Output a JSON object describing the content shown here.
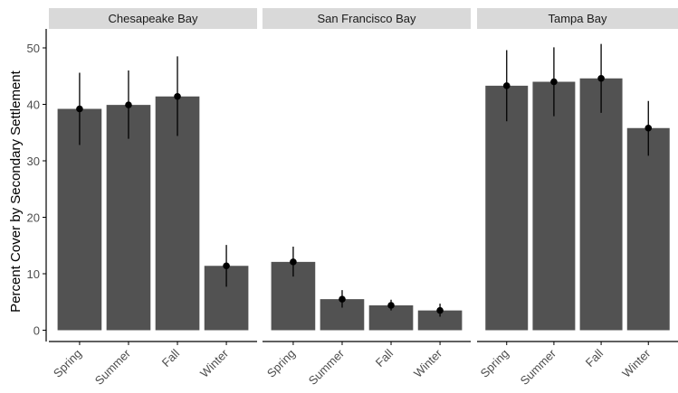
{
  "chart_data": {
    "type": "bar",
    "ylabel": "Percent Cover by Secondary Settlement",
    "xlabel": "",
    "ylim": [
      0,
      53
    ],
    "yticks": [
      0,
      10,
      20,
      30,
      40,
      50
    ],
    "categories": [
      "Spring",
      "Summer",
      "Fall",
      "Winter"
    ],
    "facets": [
      {
        "title": "Chesapeake Bay",
        "values": [
          39.2,
          39.9,
          41.4,
          11.4
        ],
        "errors": [
          [
            32.8,
            45.6
          ],
          [
            33.9,
            46.0
          ],
          [
            34.4,
            48.5
          ],
          [
            7.7,
            15.1
          ]
        ]
      },
      {
        "title": "San Francisco Bay",
        "values": [
          12.1,
          5.5,
          4.4,
          3.5
        ],
        "errors": [
          [
            9.5,
            14.8
          ],
          [
            4.0,
            7.1
          ],
          [
            3.5,
            5.4
          ],
          [
            2.4,
            4.7
          ]
        ]
      },
      {
        "title": "Tampa Bay",
        "values": [
          43.3,
          44.0,
          44.6,
          35.8
        ],
        "errors": [
          [
            37.0,
            49.6
          ],
          [
            37.9,
            50.1
          ],
          [
            38.5,
            50.7
          ],
          [
            30.9,
            40.6
          ]
        ]
      }
    ],
    "bar_color": "#525252",
    "strip_color": "#d9d9d9",
    "grid": false
  }
}
